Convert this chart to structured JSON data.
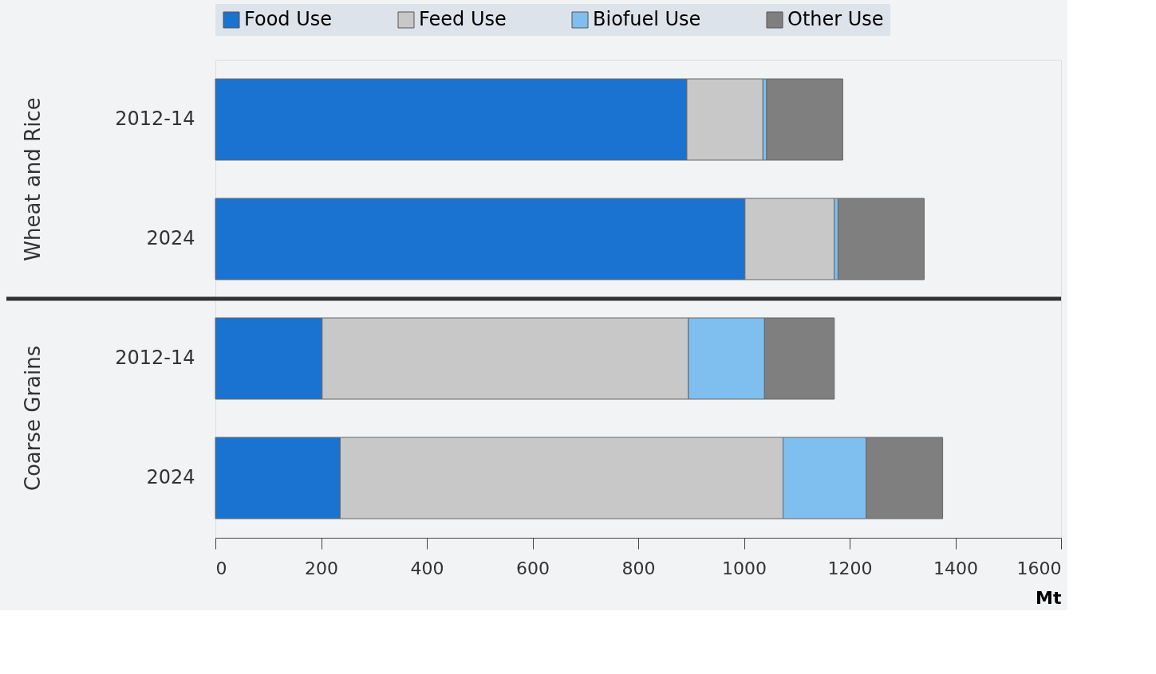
{
  "chart_data": {
    "type": "bar",
    "orientation": "horizontal",
    "stacked": true,
    "categories": [
      "2012-14",
      "2024",
      "2012-14",
      "2024"
    ],
    "series": [
      {
        "name": "Food Use",
        "color": "#1a73d0",
        "values": [
          892,
          1002,
          202,
          236
        ]
      },
      {
        "name": "Feed Use",
        "color": "#c8c8c8",
        "values": [
          144,
          169,
          693,
          838
        ]
      },
      {
        "name": "Biofuel Use",
        "color": "#7fbfef",
        "values": [
          7,
          7,
          144,
          157
        ]
      },
      {
        "name": "Other Use",
        "color": "#7f7f7f",
        "values": [
          144,
          163,
          132,
          145
        ]
      }
    ],
    "xlim": [
      0,
      1600
    ],
    "xticks": [
      0,
      200,
      400,
      600,
      800,
      1000,
      1200,
      1400,
      1600
    ],
    "xlabel": "Mt",
    "legend": "top",
    "grid": false,
    "annotations": [
      "Wheat and Rice",
      "Coarse Grains"
    ]
  }
}
